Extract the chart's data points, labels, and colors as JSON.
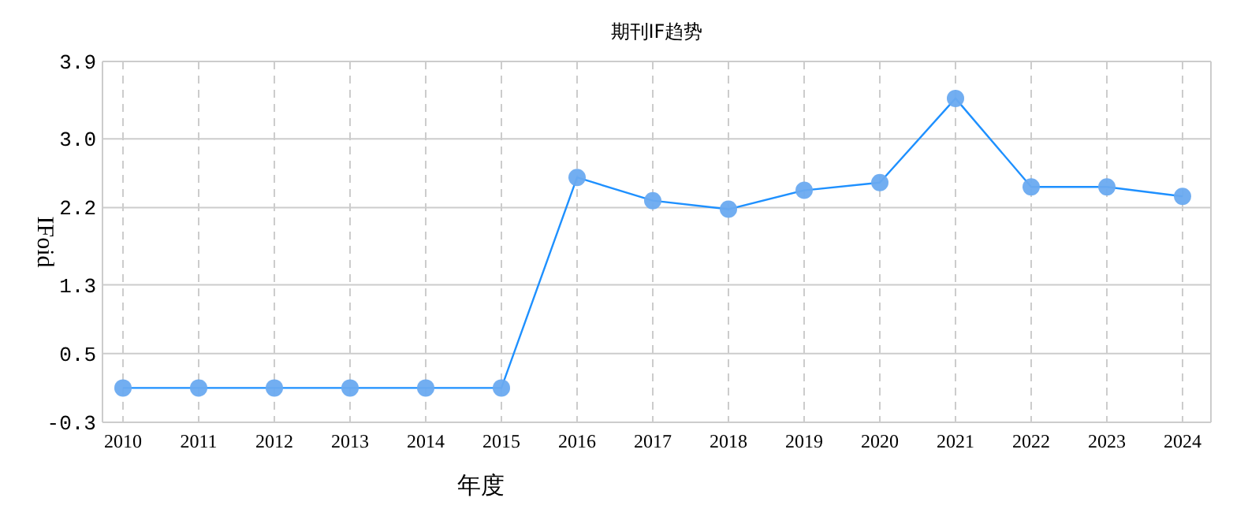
{
  "chart_data": {
    "type": "line",
    "title": "期刊IF趋势",
    "xlabel": "年度",
    "ylabel": "IFoid",
    "categories": [
      "2010",
      "2011",
      "2012",
      "2013",
      "2014",
      "2015",
      "2016",
      "2017",
      "2018",
      "2019",
      "2020",
      "2021",
      "2022",
      "2023",
      "2024"
    ],
    "series": [
      {
        "color": "#1e90ff",
        "values": [
          0.1,
          0.1,
          0.1,
          0.1,
          0.1,
          0.1,
          2.55,
          2.28,
          2.18,
          2.4,
          2.49,
          3.47,
          2.44,
          2.44,
          2.33
        ]
      }
    ],
    "ylim": [
      -0.3,
      3.9
    ],
    "yticks": [
      -0.3,
      0.5,
      1.3,
      2.2,
      {
        "value": 3.0,
        "label": "3.0"
      },
      3.9
    ],
    "grid": true,
    "marker": "circle",
    "line_style": "solid"
  }
}
